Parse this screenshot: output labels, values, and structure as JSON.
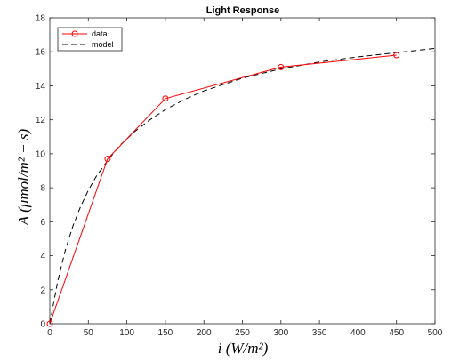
{
  "chart_data": {
    "type": "line",
    "title": "Light Response",
    "xlabel": "i (W/m²)",
    "ylabel": "A (μmol/m² − s)",
    "xlim": [
      0,
      500
    ],
    "ylim": [
      0,
      18
    ],
    "xticks": [
      0,
      50,
      100,
      150,
      200,
      250,
      300,
      350,
      400,
      450,
      500
    ],
    "yticks": [
      0,
      2,
      4,
      6,
      8,
      10,
      12,
      14,
      16,
      18
    ],
    "grid": false,
    "legend": "top-left",
    "series": [
      {
        "name": "data",
        "style": "solid-circle-markers",
        "color": "#ff0000",
        "x": [
          0,
          75,
          150,
          300,
          450
        ],
        "y": [
          0,
          9.7,
          13.25,
          15.1,
          15.8
        ]
      },
      {
        "name": "model",
        "style": "dashed",
        "color": "#000000",
        "x": [
          0,
          10,
          20,
          30,
          40,
          50,
          60,
          75,
          90,
          110,
          130,
          150,
          175,
          200,
          250,
          300,
          350,
          400,
          450,
          500
        ],
        "y": [
          0,
          2.45,
          4.3,
          5.75,
          6.9,
          7.85,
          8.65,
          9.6,
          10.45,
          11.3,
          12.0,
          12.6,
          13.2,
          13.7,
          14.45,
          15.0,
          15.4,
          15.7,
          15.95,
          16.2
        ]
      }
    ]
  }
}
